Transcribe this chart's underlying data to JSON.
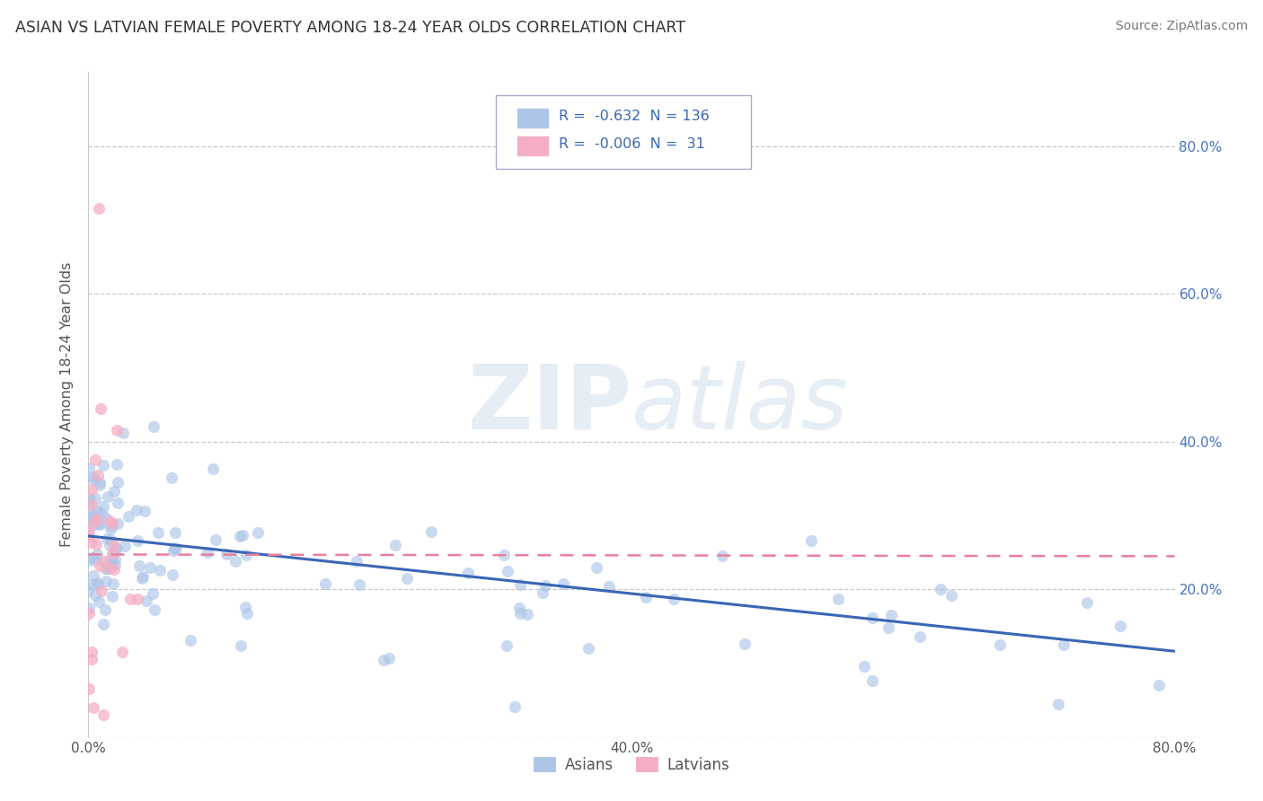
{
  "title": "ASIAN VS LATVIAN FEMALE POVERTY AMONG 18-24 YEAR OLDS CORRELATION CHART",
  "source": "Source: ZipAtlas.com",
  "ylabel": "Female Poverty Among 18-24 Year Olds",
  "xlabel": "",
  "xlim": [
    0.0,
    0.8
  ],
  "ylim": [
    0.0,
    0.9
  ],
  "ytick_positions": [
    0.0,
    0.2,
    0.4,
    0.6,
    0.8
  ],
  "ytick_labels_right": [
    "",
    "20.0%",
    "40.0%",
    "60.0%",
    "80.0%"
  ],
  "xtick_positions": [
    0.0,
    0.2,
    0.4,
    0.6,
    0.8
  ],
  "xtick_labels": [
    "0.0%",
    "",
    "40.0%",
    "",
    "80.0%"
  ],
  "asian_R": "-0.632",
  "asian_N": "136",
  "latvian_R": "-0.006",
  "latvian_N": "31",
  "asian_color": "#adc6e8",
  "latvian_color": "#f4afc5",
  "asian_line_color": "#3a66b5",
  "latvian_line_color": "#e87fa0",
  "watermark_zip": "ZIP",
  "watermark_atlas": "atlas",
  "background_color": "#ffffff",
  "grid_color": "#c8c8c8",
  "title_color": "#333333",
  "source_color": "#777777",
  "axis_label_color": "#555555",
  "right_tick_color": "#4472c4",
  "legend_text_color": "#3a66b5",
  "asian_line_intercept": 0.272,
  "asian_line_slope": -0.195,
  "latvian_line_intercept": 0.247,
  "latvian_line_slope": -0.003
}
